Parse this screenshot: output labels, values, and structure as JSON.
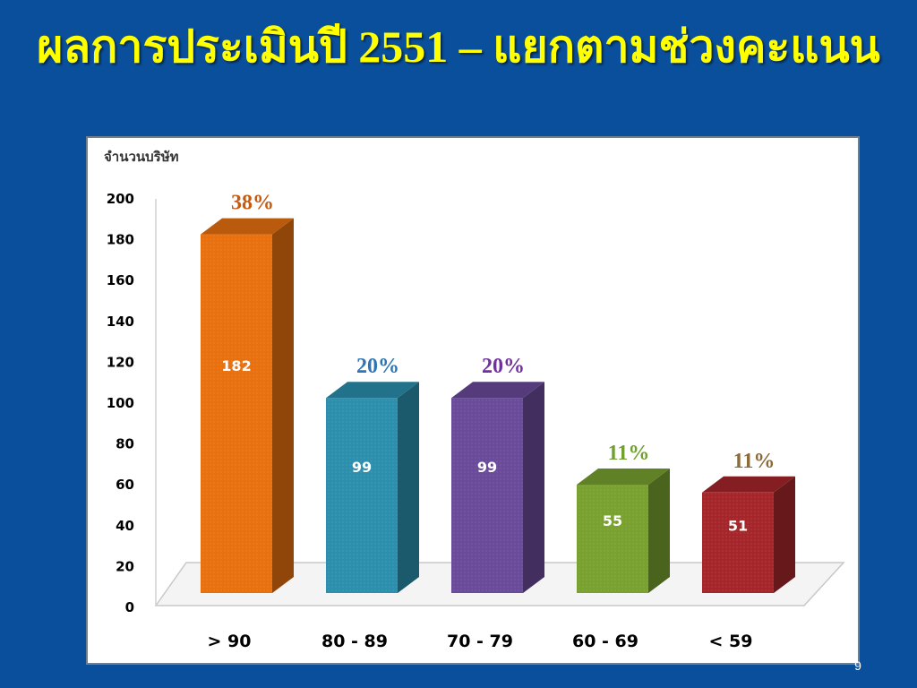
{
  "slide": {
    "title": "ผลการประเมินปี 2551 – แยกตามช่วงคะแนน",
    "page_number": "9"
  },
  "chart_data": {
    "type": "bar",
    "title": "",
    "ylabel": "จำนวนบริษัท",
    "xlabel": "",
    "ylim": [
      0,
      200
    ],
    "yticks": [
      0,
      20,
      40,
      60,
      80,
      100,
      120,
      140,
      160,
      180,
      200
    ],
    "grid": false,
    "categories": [
      "> 90",
      "80 - 89",
      "70 - 79",
      "60 - 69",
      "< 59"
    ],
    "values": [
      182,
      99,
      99,
      55,
      51
    ],
    "value_labels": [
      "182",
      "99",
      "99",
      "55",
      "51"
    ],
    "percent_labels": [
      "38%",
      "20%",
      "20%",
      "11%",
      "11%"
    ],
    "colors": [
      "#e8700f",
      "#2c8fae",
      "#6a4a9a",
      "#79a12f",
      "#a5262a"
    ],
    "percent_colors": [
      "#c55a11",
      "#2e75b6",
      "#7030a0",
      "#70a030",
      "#8b6b3a"
    ]
  }
}
